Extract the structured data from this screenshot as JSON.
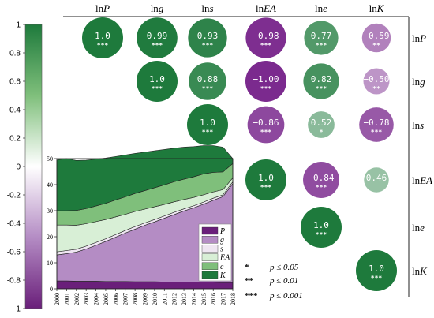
{
  "chart_data": [
    {
      "type": "heatmap",
      "variables": [
        "lnP",
        "lng",
        "lns",
        "lnEA",
        "lne",
        "lnK"
      ],
      "column_headers": [
        "lnP",
        "lng",
        "lns",
        "lnEA",
        "lne",
        "lnK"
      ],
      "row_headers": [
        "lnP",
        "lng",
        "lns",
        "lnEA",
        "lne",
        "lnK"
      ],
      "matrix_upper": [
        [
          1.0,
          0.99,
          0.93,
          -0.98,
          0.77,
          -0.59
        ],
        [
          null,
          1.0,
          0.88,
          -1.0,
          0.82,
          -0.5
        ],
        [
          null,
          null,
          1.0,
          -0.86,
          0.52,
          -0.78
        ],
        [
          null,
          null,
          null,
          1.0,
          -0.84,
          0.46
        ],
        [
          null,
          null,
          null,
          null,
          1.0,
          null
        ],
        [
          null,
          null,
          null,
          null,
          null,
          1.0
        ]
      ],
      "value_labels": [
        [
          "1.0",
          "0.99",
          "0.93",
          "−0.98",
          "0.77",
          "−0.59"
        ],
        [
          null,
          "1.0",
          "0.88",
          "−1.00",
          "0.82",
          "−0.50"
        ],
        [
          null,
          null,
          "1.0",
          "−0.86",
          "0.52",
          "−0.78"
        ],
        [
          null,
          null,
          null,
          "1.0",
          "−0.84",
          "0.46"
        ],
        [
          null,
          null,
          null,
          null,
          "1.0",
          null
        ],
        [
          null,
          null,
          null,
          null,
          null,
          "1.0"
        ]
      ],
      "significance": [
        [
          "***",
          "***",
          "***",
          "***",
          "***",
          "**"
        ],
        [
          null,
          "***",
          "***",
          "***",
          "***",
          "**"
        ],
        [
          null,
          null,
          "***",
          "***",
          "*",
          "***"
        ],
        [
          null,
          null,
          null,
          "***",
          "***",
          ""
        ],
        [
          null,
          null,
          null,
          null,
          "***",
          null
        ],
        [
          null,
          null,
          null,
          null,
          null,
          "***"
        ]
      ],
      "colorbar": {
        "min": -1,
        "max": 1,
        "ticks": [
          "1",
          "0.8",
          "0.6",
          "0.4",
          "0.2",
          "0",
          "-0.2",
          "-0.4",
          "-0.6",
          "-0.8",
          "-1"
        ],
        "positive_color": "#1e7a3c",
        "neutral_color": "#ffffff",
        "negative_color": "#7b2a8e"
      },
      "significance_legend": [
        {
          "stars": "*",
          "label": "p ≤ 0.05"
        },
        {
          "stars": "**",
          "label": "p ≤ 0.01"
        },
        {
          "stars": "***",
          "label": "p ≤ 0.001"
        }
      ]
    },
    {
      "type": "area",
      "stacked": true,
      "x": [
        2000,
        2001,
        2002,
        2003,
        2004,
        2005,
        2006,
        2007,
        2008,
        2009,
        2010,
        2011,
        2012,
        2013,
        2014,
        2015,
        2016,
        2017,
        2018
      ],
      "x_tick_labels": [
        "2000",
        "2001",
        "2002",
        "2003",
        "2004",
        "2005",
        "2006",
        "2007",
        "2008",
        "2009",
        "2010",
        "2011",
        "2012",
        "2013",
        "2014",
        "2015",
        "2016",
        "2017",
        "2018"
      ],
      "y_ticks": [
        "0",
        "10",
        "20",
        "30",
        "40",
        "50"
      ],
      "ylim": [
        0,
        50
      ],
      "legend_position": "right",
      "series": [
        {
          "name": "P",
          "color": "#6a1f7a",
          "values": [
            3.0,
            3.0,
            2.9,
            2.9,
            2.9,
            2.8,
            2.8,
            2.8,
            2.7,
            2.7,
            2.7,
            2.6,
            2.6,
            2.6,
            2.5,
            2.5,
            2.5,
            2.4,
            2.4
          ]
        },
        {
          "name": "g",
          "color": "#b48cc4",
          "values": [
            10.0,
            10.5,
            11.2,
            12.4,
            13.8,
            15.4,
            17.0,
            18.6,
            20.2,
            21.7,
            23.0,
            24.5,
            25.9,
            27.3,
            28.6,
            30.0,
            31.5,
            33.0,
            38.0
          ]
        },
        {
          "name": "s",
          "color": "#efe6f2",
          "values": [
            1.2,
            1.2,
            1.1,
            1.1,
            1.1,
            1.0,
            1.0,
            1.0,
            1.0,
            0.9,
            0.9,
            0.9,
            0.9,
            0.8,
            0.8,
            0.8,
            0.8,
            0.7,
            0.7
          ]
        },
        {
          "name": "EA",
          "color": "#d8efd6",
          "values": [
            10.3,
            9.8,
            9.2,
            8.6,
            8.0,
            7.4,
            6.8,
            6.2,
            5.8,
            5.3,
            4.9,
            4.4,
            4.0,
            3.6,
            3.2,
            2.8,
            2.4,
            2.0,
            1.5
          ]
        },
        {
          "name": "e",
          "color": "#7fbf7b",
          "values": [
            5.5,
            5.5,
            5.7,
            5.8,
            6.0,
            6.2,
            6.5,
            6.7,
            6.9,
            7.1,
            7.3,
            7.5,
            7.7,
            7.8,
            7.9,
            8.0,
            7.5,
            6.8,
            5.5
          ]
        },
        {
          "name": "K",
          "color": "#1e7a3c",
          "values": [
            19.5,
            20.0,
            19.2,
            18.6,
            18.0,
            17.4,
            16.7,
            16.1,
            15.4,
            14.8,
            14.2,
            13.6,
            12.9,
            12.3,
            11.6,
            10.9,
            10.3,
            9.5,
            1.9
          ]
        }
      ]
    }
  ]
}
